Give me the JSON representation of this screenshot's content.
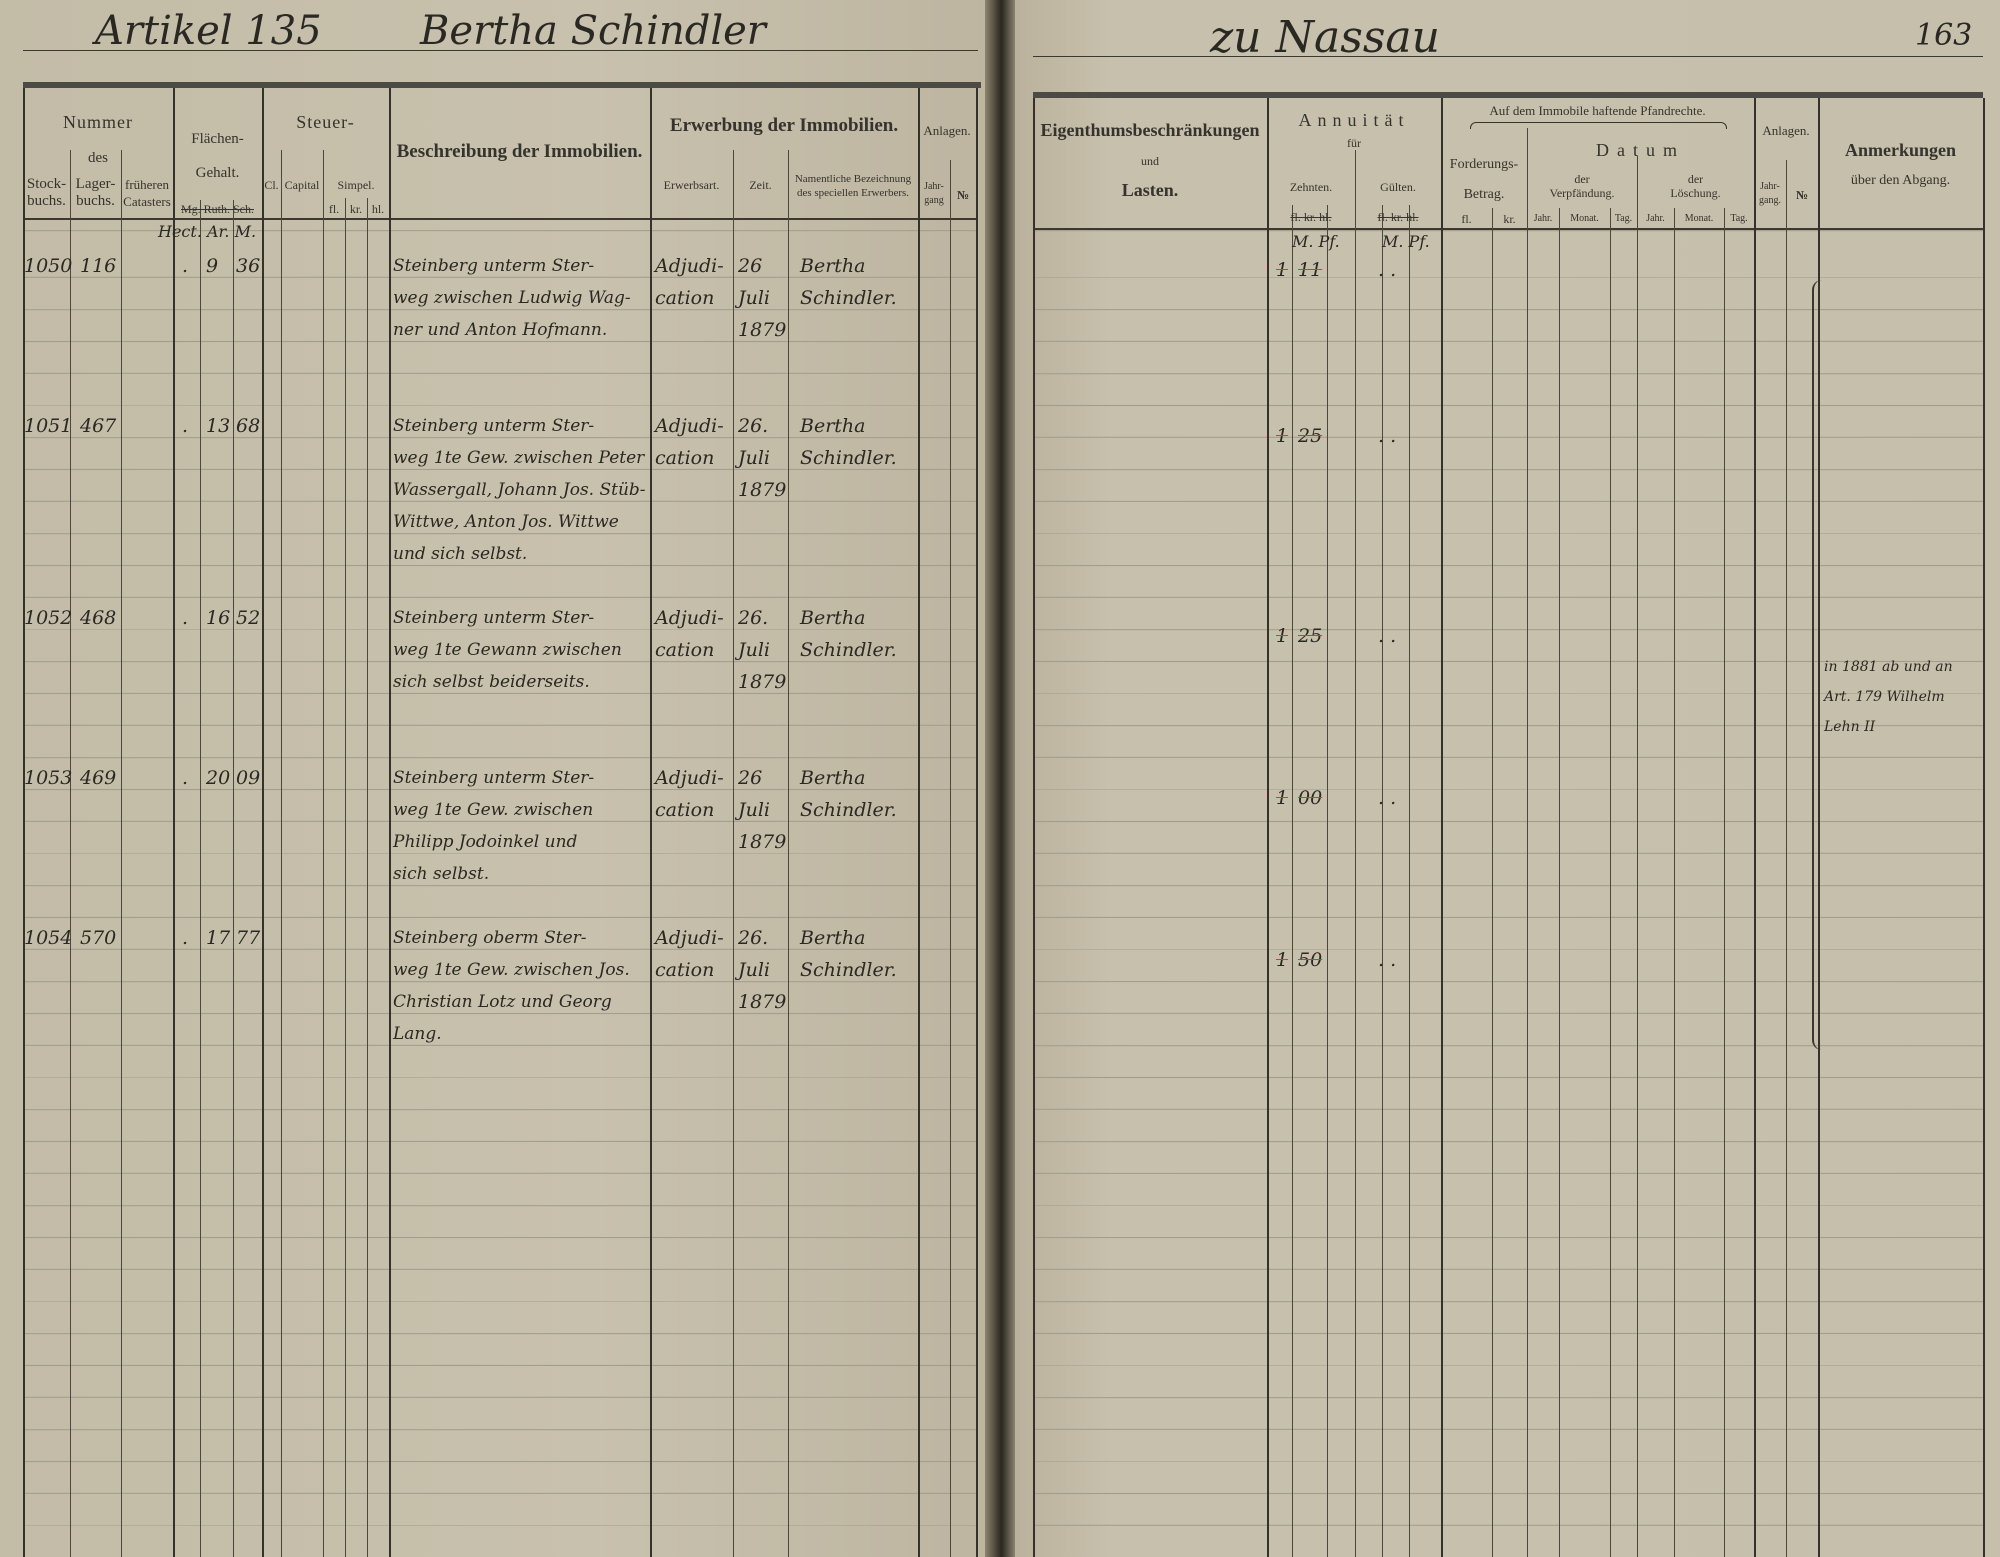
{
  "left_page": {
    "heading": {
      "article": "Artikel 135",
      "owner": "Bertha Schindler"
    },
    "columns": {
      "nummer": "Nummer",
      "des": "des",
      "stockbuchs": [
        "Stock-",
        "buchs."
      ],
      "lagerbuchs": [
        "Lager-",
        "buchs."
      ],
      "frueheren": [
        "früheren",
        "Catasters"
      ],
      "flaechen": [
        "Flächen-",
        "Gehalt."
      ],
      "flaechen_units": "Mg. Ruth. Sch.",
      "area_units_handwritten": "Hect. Ar. M.",
      "steuer": "Steuer-",
      "cl": "Cl.",
      "capital": "Capital",
      "simpel": "Simpel.",
      "simpel_units": [
        "fl.",
        "kr.",
        "hl."
      ],
      "beschreibung": "Beschreibung der Immobilien.",
      "erwerbung": "Erwerbung der Immobilien.",
      "erwerbsart": "Erwerbsart.",
      "zeit": "Zeit.",
      "namentliche": [
        "Namentliche Bezeichnung",
        "des speciellen Erwerbers."
      ],
      "anlagen": "Anlagen.",
      "jahrgang": [
        "Jahr-",
        "gang"
      ],
      "nr": "№"
    }
  },
  "right_page": {
    "heading": {
      "place": "zu Nassau",
      "page_number": "163"
    },
    "columns": {
      "eigenthum": [
        "Eigenthumsbeschränkungen",
        "und",
        "Lasten."
      ],
      "annuitaet": "Annuität",
      "fuer": "für",
      "zehnten": "Zehnten.",
      "gulten": "Gülten.",
      "struck_units": "fl. kr. hl.",
      "annuity_units_handwritten": [
        "M. Pf.",
        "M. Pf."
      ],
      "pfandrechte": "Auf dem Immobile haftende Pfandrechte.",
      "forderung": [
        "Forderungs-",
        "Betrag."
      ],
      "forderung_units": [
        "fl.",
        "kr."
      ],
      "datum": "Datum",
      "verpfaendung": [
        "der",
        "Verpfändung."
      ],
      "loeschung": [
        "der",
        "Löschung."
      ],
      "date_units": [
        "Jahr.",
        "Monat.",
        "Tag.",
        "Jahr.",
        "Monat.",
        "Tag."
      ],
      "anlagen": "Anlagen.",
      "jahrgang": [
        "Jahr-",
        "gang."
      ],
      "nr": "№",
      "anmerkungen": [
        "Anmerkungen",
        "über den Abgang."
      ]
    },
    "remark": [
      "in 1881 ab und an",
      "Art. 179 Wilhelm",
      "Lehn II"
    ]
  },
  "entries": [
    {
      "stock": "1050",
      "lager": "116",
      "area_ha": ".",
      "area_ar": "9",
      "area_m": "36",
      "description": [
        "Steinberg unterm Ster-",
        "weg zwischen Ludwig Wag-",
        "ner und Anton Hofmann."
      ],
      "acquisition": [
        "Adjudi-",
        "cation"
      ],
      "date": [
        "26",
        "Juli",
        "1879"
      ],
      "acquirer": [
        "Bertha",
        "Schindler."
      ],
      "tithe_m": "1",
      "tithe_pf": "11",
      "gulten": ". ."
    },
    {
      "stock": "1051",
      "lager": "467",
      "area_ha": ".",
      "area_ar": "13",
      "area_m": "68",
      "description": [
        "Steinberg unterm Ster-",
        "weg 1te Gew. zwischen Peter",
        "Wassergall, Johann Jos. Stüb-",
        "Wittwe, Anton Jos. Wittwe",
        "und sich selbst."
      ],
      "acquisition": [
        "Adjudi-",
        "cation"
      ],
      "date": [
        "26.",
        "Juli",
        "1879"
      ],
      "acquirer": [
        "Bertha",
        "Schindler."
      ],
      "tithe_m": "1",
      "tithe_pf": "25",
      "gulten": ". ."
    },
    {
      "stock": "1052",
      "lager": "468",
      "area_ha": ".",
      "area_ar": "16",
      "area_m": "52",
      "description": [
        "Steinberg unterm Ster-",
        "weg 1te Gewann zwischen",
        "sich selbst beiderseits."
      ],
      "acquisition": [
        "Adjudi-",
        "cation"
      ],
      "date": [
        "26.",
        "Juli",
        "1879"
      ],
      "acquirer": [
        "Bertha",
        "Schindler."
      ],
      "tithe_m": "1",
      "tithe_pf": "25",
      "gulten": ". ."
    },
    {
      "stock": "1053",
      "lager": "469",
      "area_ha": ".",
      "area_ar": "20",
      "area_m": "09",
      "description": [
        "Steinberg unterm Ster-",
        "weg 1te Gew. zwischen",
        "Philipp Jodoinkel und",
        "sich selbst."
      ],
      "acquisition": [
        "Adjudi-",
        "cation"
      ],
      "date": [
        "26",
        "Juli",
        "1879"
      ],
      "acquirer": [
        "Bertha",
        "Schindler."
      ],
      "tithe_m": "1",
      "tithe_pf": "00",
      "gulten": ". ."
    },
    {
      "stock": "1054",
      "lager": "570",
      "area_ha": ".",
      "area_ar": "17",
      "area_m": "77",
      "description": [
        "Steinberg oberm Ster-",
        "weg 1te Gew. zwischen Jos.",
        "Christian Lotz und Georg",
        "Lang."
      ],
      "acquisition": [
        "Adjudi-",
        "cation"
      ],
      "date": [
        "26.",
        "Juli",
        "1879"
      ],
      "acquirer": [
        "Bertha",
        "Schindler."
      ],
      "tithe_m": "1",
      "tithe_pf": "50",
      "gulten": ". ."
    }
  ],
  "colors": {
    "paper": "#c6bfab",
    "ink": "#2a2823",
    "rule": "#a39e8c",
    "red_strike": "#b04a4a"
  }
}
